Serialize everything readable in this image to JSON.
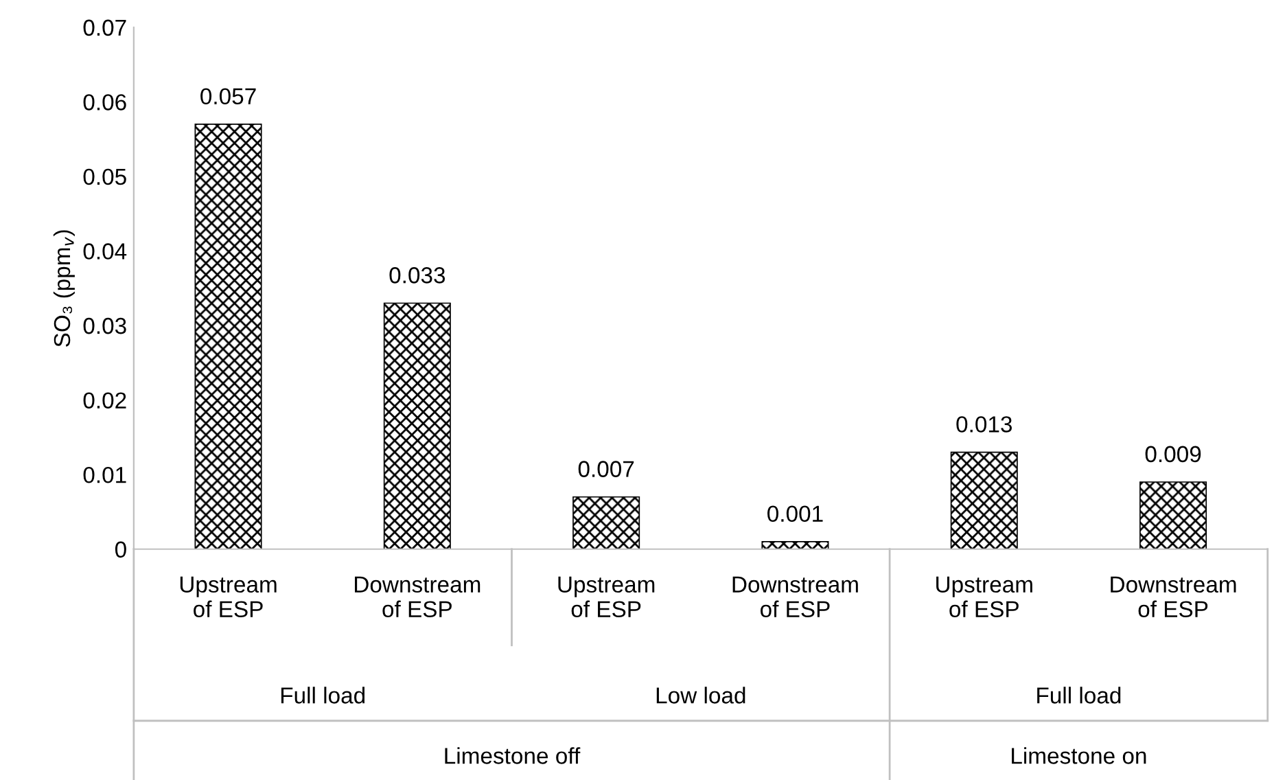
{
  "chart_data": {
    "type": "bar",
    "ylabel": "SO₃ (ppm$_{v}$)",
    "categories": [
      "Upstream\nof ESP",
      "Downstream\nof ESP",
      "Upstream\nof ESP",
      "Downstream\nof ESP",
      "Upstream\nof ESP",
      "Downstream\nof ESP"
    ],
    "values": [
      0.057,
      0.033,
      0.007,
      0.001,
      0.013,
      0.009
    ],
    "color": "#000000",
    "data_labels": true,
    "ylim": [
      0,
      0.07
    ],
    "yticks": [
      0,
      0.01,
      0.02,
      0.03,
      0.04,
      0.05,
      0.06,
      0.07
    ],
    "annotations": [
      "Full load",
      "Low load",
      "Full load",
      "Limestone off",
      "Limestone on"
    ],
    "grid": false
  }
}
